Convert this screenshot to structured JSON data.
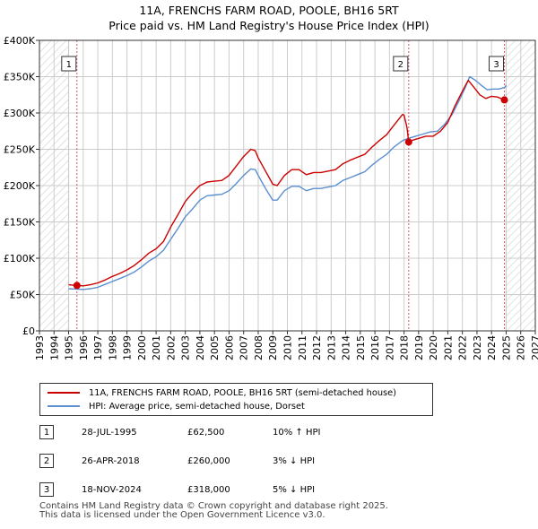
{
  "title": "11A, FRENCHS FARM ROAD, POOLE, BH16 5RT",
  "subtitle": "Price paid vs. HM Land Registry's House Price Index (HPI)",
  "colors": {
    "price": "#cc0000",
    "hpi": "#5b8fd0",
    "vline": "#e05060",
    "grid": "#cccccc",
    "hatch": "#dddddd"
  },
  "chart_data": {
    "type": "line",
    "title": "11A, FRENCHS FARM ROAD, POOLE, BH16 5RT",
    "subtitle": "Price paid vs. HM Land Registry's House Price Index (HPI)",
    "xlabel": "",
    "ylabel": "",
    "xlim": [
      1993,
      2027
    ],
    "ylim": [
      0,
      400000
    ],
    "x_ticks": [
      "1993",
      "1994",
      "1995",
      "1996",
      "1997",
      "1998",
      "1999",
      "2000",
      "2001",
      "2002",
      "2003",
      "2004",
      "2005",
      "2006",
      "2007",
      "2008",
      "2009",
      "2010",
      "2011",
      "2012",
      "2013",
      "2014",
      "2015",
      "2016",
      "2017",
      "2018",
      "2019",
      "2020",
      "2021",
      "2022",
      "2023",
      "2024",
      "2025",
      "2026",
      "2027"
    ],
    "y_ticks": [
      {
        "value": 0,
        "label": "£0"
      },
      {
        "value": 50000,
        "label": "£50K"
      },
      {
        "value": 100000,
        "label": "£100K"
      },
      {
        "value": 150000,
        "label": "£150K"
      },
      {
        "value": 200000,
        "label": "£200K"
      },
      {
        "value": 250000,
        "label": "£250K"
      },
      {
        "value": 300000,
        "label": "£300K"
      },
      {
        "value": 350000,
        "label": "£350K"
      },
      {
        "value": 400000,
        "label": "£400K"
      }
    ],
    "grid": true,
    "hatched_regions": [
      [
        1993,
        1995.0
      ],
      [
        2025.0,
        2027
      ]
    ],
    "series": [
      {
        "name": "11A, FRENCHS FARM ROAD, POOLE, BH16 5RT (semi-detached house)",
        "color": "#cc0000",
        "points": [
          [
            1995.0,
            63500
          ],
          [
            1995.57,
            62500
          ],
          [
            1996.0,
            62000
          ],
          [
            1996.5,
            63500
          ],
          [
            1997.0,
            66000
          ],
          [
            1997.5,
            70000
          ],
          [
            1998.0,
            75000
          ],
          [
            1998.5,
            79000
          ],
          [
            1999.0,
            84000
          ],
          [
            1999.5,
            90000
          ],
          [
            2000.0,
            98000
          ],
          [
            2000.5,
            107000
          ],
          [
            2001.0,
            113000
          ],
          [
            2001.5,
            123000
          ],
          [
            2002.0,
            143000
          ],
          [
            2002.5,
            160000
          ],
          [
            2003.0,
            178000
          ],
          [
            2003.5,
            190000
          ],
          [
            2004.0,
            200000
          ],
          [
            2004.5,
            205000
          ],
          [
            2005.0,
            206000
          ],
          [
            2005.5,
            207000
          ],
          [
            2006.0,
            214000
          ],
          [
            2006.5,
            227000
          ],
          [
            2007.0,
            240000
          ],
          [
            2007.5,
            250000
          ],
          [
            2007.8,
            248000
          ],
          [
            2008.0,
            238000
          ],
          [
            2008.5,
            220000
          ],
          [
            2009.0,
            202000
          ],
          [
            2009.3,
            200000
          ],
          [
            2009.8,
            214000
          ],
          [
            2010.3,
            222000
          ],
          [
            2010.8,
            222000
          ],
          [
            2011.3,
            215000
          ],
          [
            2011.8,
            218000
          ],
          [
            2012.3,
            218000
          ],
          [
            2012.8,
            220000
          ],
          [
            2013.3,
            222000
          ],
          [
            2013.8,
            230000
          ],
          [
            2014.3,
            235000
          ],
          [
            2014.8,
            239000
          ],
          [
            2015.3,
            243000
          ],
          [
            2015.8,
            253000
          ],
          [
            2016.3,
            262000
          ],
          [
            2016.8,
            270000
          ],
          [
            2017.3,
            283000
          ],
          [
            2017.9,
            298000
          ],
          [
            2018.0,
            297000
          ],
          [
            2018.2,
            280000
          ],
          [
            2018.32,
            260000
          ],
          [
            2018.5,
            262000
          ],
          [
            2019.0,
            265000
          ],
          [
            2019.5,
            268000
          ],
          [
            2020.0,
            268000
          ],
          [
            2020.5,
            275000
          ],
          [
            2021.0,
            287000
          ],
          [
            2021.5,
            310000
          ],
          [
            2022.0,
            330000
          ],
          [
            2022.4,
            345000
          ],
          [
            2022.8,
            335000
          ],
          [
            2023.2,
            325000
          ],
          [
            2023.6,
            320000
          ],
          [
            2024.0,
            323000
          ],
          [
            2024.4,
            322000
          ],
          [
            2024.88,
            318000
          ],
          [
            2025.0,
            322000
          ]
        ]
      },
      {
        "name": "HPI: Average price, semi-detached house, Dorset",
        "color": "#5b8fd0",
        "points": [
          [
            1995.0,
            58000
          ],
          [
            1995.5,
            57500
          ],
          [
            1996.0,
            57000
          ],
          [
            1996.5,
            58000
          ],
          [
            1997.0,
            60000
          ],
          [
            1997.5,
            64000
          ],
          [
            1998.0,
            68000
          ],
          [
            1998.5,
            72000
          ],
          [
            1999.0,
            76000
          ],
          [
            1999.5,
            81000
          ],
          [
            2000.0,
            88000
          ],
          [
            2000.5,
            96000
          ],
          [
            2001.0,
            102000
          ],
          [
            2001.5,
            111000
          ],
          [
            2002.0,
            126000
          ],
          [
            2002.5,
            141000
          ],
          [
            2003.0,
            157000
          ],
          [
            2003.5,
            168000
          ],
          [
            2004.0,
            180000
          ],
          [
            2004.5,
            186000
          ],
          [
            2005.0,
            187000
          ],
          [
            2005.5,
            188000
          ],
          [
            2006.0,
            193000
          ],
          [
            2006.5,
            203000
          ],
          [
            2007.0,
            214000
          ],
          [
            2007.5,
            223000
          ],
          [
            2007.8,
            222000
          ],
          [
            2008.0,
            214000
          ],
          [
            2008.5,
            196000
          ],
          [
            2009.0,
            180000
          ],
          [
            2009.3,
            180000
          ],
          [
            2009.8,
            193000
          ],
          [
            2010.3,
            199000
          ],
          [
            2010.8,
            199000
          ],
          [
            2011.3,
            193000
          ],
          [
            2011.8,
            196000
          ],
          [
            2012.3,
            196000
          ],
          [
            2012.8,
            198000
          ],
          [
            2013.3,
            200000
          ],
          [
            2013.8,
            207000
          ],
          [
            2014.3,
            211000
          ],
          [
            2014.8,
            215000
          ],
          [
            2015.3,
            219000
          ],
          [
            2015.8,
            228000
          ],
          [
            2016.3,
            236000
          ],
          [
            2016.8,
            243000
          ],
          [
            2017.3,
            253000
          ],
          [
            2017.9,
            262000
          ],
          [
            2018.3,
            265000
          ],
          [
            2018.8,
            268000
          ],
          [
            2019.3,
            271000
          ],
          [
            2019.8,
            274000
          ],
          [
            2020.3,
            275000
          ],
          [
            2020.8,
            285000
          ],
          [
            2021.3,
            298000
          ],
          [
            2021.8,
            318000
          ],
          [
            2022.2,
            335000
          ],
          [
            2022.5,
            350000
          ],
          [
            2022.9,
            345000
          ],
          [
            2023.3,
            338000
          ],
          [
            2023.7,
            332000
          ],
          [
            2024.1,
            333000
          ],
          [
            2024.5,
            333000
          ],
          [
            2024.9,
            335000
          ],
          [
            2025.0,
            338000
          ]
        ]
      }
    ],
    "sale_markers": [
      {
        "label": "1",
        "year": 1995.57,
        "value": 62500
      },
      {
        "label": "2",
        "year": 2018.32,
        "value": 260000
      },
      {
        "label": "3",
        "year": 2024.88,
        "value": 318000
      }
    ]
  },
  "legend": {
    "price_label": "11A, FRENCHS FARM ROAD, POOLE, BH16 5RT (semi-detached house)",
    "hpi_label": "HPI: Average price, semi-detached house, Dorset"
  },
  "sales": [
    {
      "num": "1",
      "date": "28-JUL-1995",
      "price": "£62,500",
      "hpi": "10% ↑ HPI"
    },
    {
      "num": "2",
      "date": "26-APR-2018",
      "price": "£260,000",
      "hpi": "3% ↓ HPI"
    },
    {
      "num": "3",
      "date": "18-NOV-2024",
      "price": "£318,000",
      "hpi": "5% ↓ HPI"
    }
  ],
  "footer": {
    "line1": "Contains HM Land Registry data © Crown copyright and database right 2025.",
    "line2": "This data is licensed under the Open Government Licence v3.0."
  }
}
